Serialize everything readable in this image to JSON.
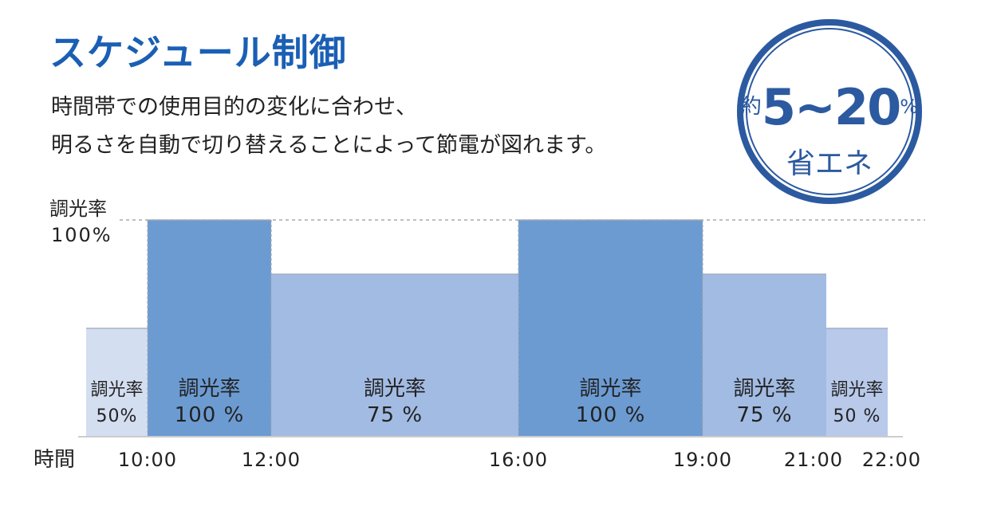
{
  "title": "スケジュール制御",
  "description": [
    "時間帯での使用目的の変化に合わせ、",
    "明るさを自動で切り替えることによって節電が図れます。"
  ],
  "badge": {
    "approx": "約",
    "range": "5~20",
    "percent": "%",
    "label": "省エネ"
  },
  "chart_data": {
    "type": "bar",
    "ylabel": "調光率",
    "ylabel_max": "100%",
    "xlabel": "時間",
    "ylim": [
      0,
      100
    ],
    "x_ticks": [
      "10:00",
      "12:00",
      "16:00",
      "19:00",
      "21:00",
      "22:00"
    ],
    "segments": [
      {
        "start": 9.0,
        "end": 10.0,
        "value": 50,
        "label_top": "調光率",
        "label_bottom": "50%",
        "color": "#d4def1",
        "font_size": 22
      },
      {
        "start": 10.0,
        "end": 12.0,
        "value": 100,
        "label_top": "調光率",
        "label_bottom": "100 %",
        "color": "#6c9bd2",
        "font_size": 26
      },
      {
        "start": 12.0,
        "end": 16.0,
        "value": 75,
        "label_top": "調光率",
        "label_bottom": "75 %",
        "color": "#a2bbe3",
        "font_size": 26
      },
      {
        "start": 16.0,
        "end": 19.0,
        "value": 100,
        "label_top": "調光率",
        "label_bottom": "100 %",
        "color": "#6c9bd2",
        "font_size": 26
      },
      {
        "start": 19.0,
        "end": 21.0,
        "value": 75,
        "label_top": "調光率",
        "label_bottom": "75 %",
        "color": "#a2bbe3",
        "font_size": 26
      },
      {
        "start": 21.0,
        "end": 22.0,
        "value": 50,
        "label_top": "調光率",
        "label_bottom": "50 %",
        "color": "#b8c9ea",
        "font_size": 22
      }
    ],
    "colors": {
      "axis": "#cccccc",
      "dash": "#aaaaaa"
    }
  }
}
